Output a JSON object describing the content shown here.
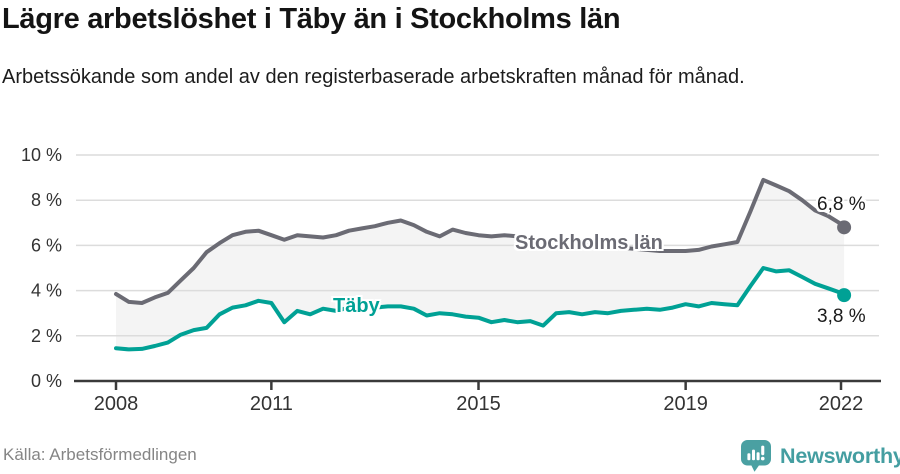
{
  "chart_data": {
    "type": "line",
    "title": "Lägre arbetslöshet i Täby än i Stockholms län",
    "subtitle": "Arbetssökande som andel av den registerbaserade arbetskraften månad för månad.",
    "grid": true,
    "area_fill_between_series": true,
    "x_axis": {
      "lim": [
        2008,
        2022.1
      ],
      "ticks": [
        {
          "value": 2008,
          "label": "2008"
        },
        {
          "value": 2011,
          "label": "2011"
        },
        {
          "value": 2015,
          "label": "2015"
        },
        {
          "value": 2019,
          "label": "2019"
        },
        {
          "value": 2022,
          "label": "2022"
        }
      ]
    },
    "y_axis": {
      "lim": [
        0,
        10
      ],
      "unit": "%",
      "ticks": [
        {
          "value": 0,
          "label": "0 %"
        },
        {
          "value": 2,
          "label": "2 %"
        },
        {
          "value": 4,
          "label": "4 %"
        },
        {
          "value": 6,
          "label": "6 %"
        },
        {
          "value": 8,
          "label": "8 %"
        },
        {
          "value": 10,
          "label": "10 %"
        }
      ]
    },
    "x": [
      2008.0,
      2008.25,
      2008.5,
      2008.75,
      2009.0,
      2009.25,
      2009.5,
      2009.75,
      2010.0,
      2010.25,
      2010.5,
      2010.75,
      2011.0,
      2011.25,
      2011.5,
      2011.75,
      2012.0,
      2012.25,
      2012.5,
      2012.75,
      2013.0,
      2013.25,
      2013.5,
      2013.75,
      2014.0,
      2014.25,
      2014.5,
      2014.75,
      2015.0,
      2015.25,
      2015.5,
      2015.75,
      2016.0,
      2016.25,
      2016.5,
      2016.75,
      2017.0,
      2017.25,
      2017.5,
      2017.75,
      2018.0,
      2018.25,
      2018.5,
      2018.75,
      2019.0,
      2019.25,
      2019.5,
      2019.75,
      2020.0,
      2020.25,
      2020.5,
      2020.75,
      2021.0,
      2021.25,
      2021.5,
      2021.75,
      2022.0,
      2022.06
    ],
    "series": [
      {
        "name": "Stockholms län",
        "color": "#6b6b74",
        "end_label": "6,8 %",
        "end_value": 6.8,
        "values": [
          3.85,
          3.5,
          3.45,
          3.7,
          3.9,
          4.45,
          5.0,
          5.7,
          6.1,
          6.45,
          6.6,
          6.65,
          6.45,
          6.25,
          6.45,
          6.4,
          6.35,
          6.45,
          6.65,
          6.75,
          6.85,
          7.0,
          7.1,
          6.9,
          6.6,
          6.4,
          6.7,
          6.55,
          6.45,
          6.4,
          6.45,
          6.4,
          6.3,
          6.2,
          6.15,
          6.1,
          6.05,
          6.0,
          5.95,
          5.9,
          5.85,
          5.8,
          5.75,
          5.75,
          5.75,
          5.8,
          5.95,
          6.05,
          6.15,
          7.5,
          8.9,
          8.65,
          8.4,
          8.0,
          7.55,
          7.3,
          6.95,
          6.8
        ]
      },
      {
        "name": "Täby",
        "color": "#00a195",
        "end_label": "3,8 %",
        "end_value": 3.8,
        "values": [
          1.45,
          1.4,
          1.42,
          1.55,
          1.7,
          2.05,
          2.25,
          2.35,
          2.95,
          3.25,
          3.35,
          3.55,
          3.45,
          2.6,
          3.1,
          2.95,
          3.2,
          3.1,
          3.25,
          3.2,
          3.25,
          3.3,
          3.3,
          3.2,
          2.9,
          3.0,
          2.95,
          2.85,
          2.8,
          2.6,
          2.7,
          2.6,
          2.65,
          2.45,
          3.0,
          3.05,
          2.95,
          3.05,
          3.0,
          3.1,
          3.15,
          3.2,
          3.15,
          3.25,
          3.4,
          3.3,
          3.45,
          3.4,
          3.35,
          4.2,
          5.0,
          4.85,
          4.9,
          4.6,
          4.3,
          4.1,
          3.9,
          3.8
        ]
      }
    ]
  },
  "footer": {
    "source": "Källa: Arbetsförmedlingen",
    "brand": "Newsworthy"
  },
  "colors": {
    "gridline": "#dcdcdc",
    "axis": "#3a3a3a",
    "tick_label": "#333333",
    "area_fill": "#f4f4f4",
    "annotation": "#1a1a1a",
    "source_text": "#858585",
    "brand_teal": "#449ea1"
  }
}
